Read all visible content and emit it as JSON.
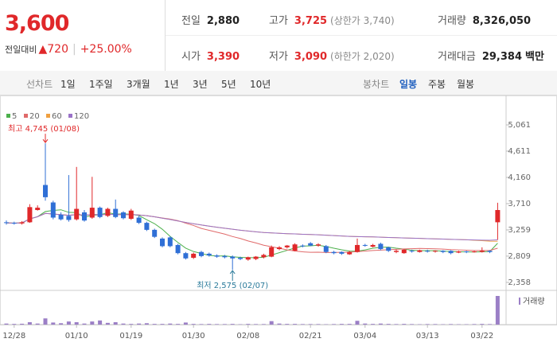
{
  "quote": {
    "price": "3,600",
    "change_label": "전일대비",
    "change": "▲720",
    "change_rate": "+25.00%"
  },
  "summary": [
    {
      "label": "전일",
      "value": "2,880"
    },
    {
      "label": "고가",
      "value": "3,725",
      "note": "(상한가 3,740)"
    },
    {
      "label": "거래량",
      "value": "8,326,050"
    },
    {
      "label": "시가",
      "value": "3,390"
    },
    {
      "label": "저가",
      "value": "3,090",
      "note": "(하한가 2,020)"
    },
    {
      "label": "거래대금",
      "value": "29,384",
      "unit": "백만"
    }
  ],
  "toolbar": {
    "line_chart": {
      "label": "선차트",
      "periods": [
        "1일",
        "1주일",
        "3개월",
        "1년",
        "3년",
        "5년",
        "10년"
      ]
    },
    "candle_chart": {
      "label": "봉차트",
      "periods": [
        "일봉",
        "주봉",
        "월봉"
      ],
      "selected": 0
    }
  },
  "chart_data": {
    "type": "candlestick",
    "categories": [
      null,
      "12/28",
      null,
      null,
      null,
      null,
      null,
      null,
      null,
      "01/10",
      null,
      null,
      null,
      null,
      null,
      null,
      "01/19",
      null,
      null,
      null,
      null,
      null,
      null,
      null,
      "01/30",
      null,
      null,
      null,
      null,
      null,
      null,
      "02/08",
      null,
      null,
      null,
      null,
      null,
      null,
      null,
      "02/21",
      null,
      null,
      null,
      null,
      null,
      null,
      "03/04",
      null,
      null,
      null,
      null,
      null,
      null,
      null,
      "03/13",
      null,
      null,
      null,
      null,
      null,
      null,
      "03/22",
      null,
      null
    ],
    "open": [
      3390,
      3380,
      3370,
      3390,
      3600,
      4030,
      3730,
      3520,
      3500,
      3440,
      3560,
      3470,
      3640,
      3500,
      3620,
      3560,
      3450,
      3470,
      3380,
      3260,
      3110,
      3130,
      3000,
      2860,
      2780,
      2880,
      2850,
      2820,
      2810,
      2800,
      2780,
      2750,
      2760,
      2790,
      2800,
      2930,
      2960,
      2900,
      2990,
      3030,
      2990,
      2980,
      2880,
      2880,
      2840,
      2880,
      3000,
      2970,
      3020,
      2960,
      2880,
      2860,
      2900,
      2880,
      2900,
      2890,
      2900,
      2900,
      2870,
      2890,
      2880,
      2880,
      2900,
      3390
    ],
    "high": [
      3420,
      3400,
      3410,
      3700,
      3680,
      4745,
      3760,
      3560,
      4200,
      4340,
      3600,
      4170,
      3660,
      3640,
      3780,
      3580,
      3620,
      3500,
      3400,
      3280,
      3130,
      3150,
      3020,
      2880,
      2870,
      2900,
      2870,
      2840,
      2830,
      2820,
      2800,
      2800,
      2810,
      2850,
      2990,
      2980,
      3000,
      3030,
      3010,
      3050,
      3030,
      3000,
      2900,
      2890,
      2900,
      3110,
      3020,
      3020,
      3040,
      2970,
      2920,
      2930,
      2920,
      2920,
      2920,
      2910,
      2910,
      2910,
      2900,
      2900,
      2900,
      2960,
      2910,
      3725
    ],
    "low": [
      3350,
      3350,
      3350,
      3380,
      3590,
      3760,
      3440,
      3420,
      3400,
      3420,
      3400,
      3450,
      3460,
      3480,
      3460,
      3440,
      3430,
      3360,
      3240,
      3120,
      2960,
      2960,
      2840,
      2750,
      2760,
      2790,
      2800,
      2780,
      2770,
      2575,
      2740,
      2730,
      2740,
      2770,
      2790,
      2910,
      2940,
      2890,
      2960,
      2980,
      2970,
      2860,
      2840,
      2830,
      2830,
      2870,
      2970,
      2960,
      2910,
      2880,
      2860,
      2850,
      2870,
      2870,
      2870,
      2870,
      2860,
      2840,
      2860,
      2860,
      2870,
      2870,
      2860,
      3090
    ],
    "close": [
      3380,
      3370,
      3390,
      3650,
      3640,
      3820,
      3470,
      3440,
      3430,
      3620,
      3420,
      3640,
      3480,
      3620,
      3480,
      3460,
      3590,
      3380,
      3260,
      3140,
      2980,
      2980,
      2860,
      2770,
      2850,
      2810,
      2820,
      2800,
      2790,
      2770,
      2760,
      2790,
      2800,
      2830,
      2960,
      2960,
      2990,
      3010,
      2980,
      2990,
      3010,
      2880,
      2860,
      2850,
      2880,
      3000,
      2990,
      3000,
      2930,
      2900,
      2900,
      2920,
      2890,
      2910,
      2890,
      2900,
      2880,
      2860,
      2890,
      2880,
      2890,
      2900,
      2880,
      3600
    ],
    "volume": [
      300000,
      200000,
      250000,
      700000,
      300000,
      1800000,
      600000,
      400000,
      900000,
      700000,
      300000,
      900000,
      1200000,
      500000,
      700000,
      300000,
      200000,
      300000,
      400000,
      200000,
      200000,
      300000,
      200000,
      600000,
      200000,
      150000,
      200000,
      150000,
      150000,
      200000,
      100000,
      200000,
      150000,
      150000,
      1000000,
      300000,
      200000,
      200000,
      150000,
      150000,
      150000,
      100000,
      150000,
      200000,
      200000,
      1100000,
      300000,
      200000,
      300000,
      200000,
      150000,
      200000,
      150000,
      100000,
      150000,
      150000,
      100000,
      150000,
      100000,
      100000,
      150000,
      200000,
      150000,
      8326050
    ],
    "volume_label": "거래량",
    "volume_color": "#9b7fc6",
    "up_color": "#e0282a",
    "down_color": "#2f6fd6",
    "moving_averages": [
      {
        "name": "5",
        "period": 5,
        "color": "#4cb04c"
      },
      {
        "name": "20",
        "period": 20,
        "color": "#e06a6a"
      },
      {
        "name": "60",
        "period": 60,
        "color": "#f0a040"
      },
      {
        "name": "120",
        "period": 120,
        "color": "#9a72c8"
      }
    ],
    "ylim": [
      2221,
      5457
    ],
    "yticks": [
      {
        "value": 2358,
        "label": "2,358"
      },
      {
        "value": 2809,
        "label": "2,809"
      },
      {
        "value": 3259,
        "label": "3,259"
      },
      {
        "value": 3710,
        "label": "3,710"
      },
      {
        "value": 4160,
        "label": "4,160"
      },
      {
        "value": 4611,
        "label": "4,611"
      },
      {
        "value": 5061,
        "label": "5,061"
      }
    ],
    "annotations": [
      {
        "text": "최고 4,745 (01/08)",
        "index": 5,
        "at": "high",
        "color": "#e0282a"
      },
      {
        "text": "최저 2,575 (02/07)",
        "index": 29,
        "at": "low",
        "color": "#2a7a9a"
      }
    ]
  }
}
